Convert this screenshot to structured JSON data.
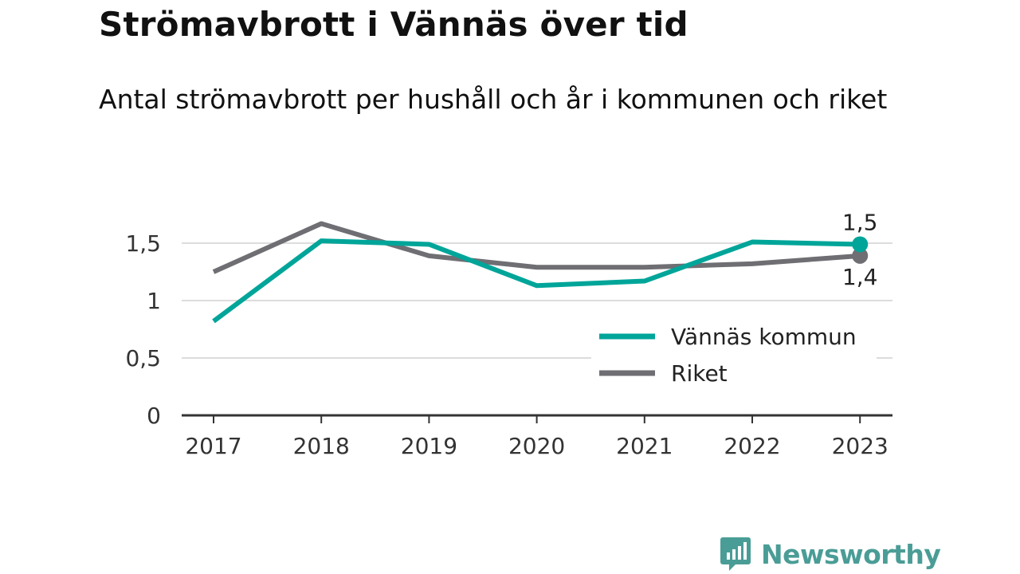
{
  "header": {
    "title": "Strömavbrott i Vännäs över tid",
    "subtitle": "Antal strömavbrott per hushåll och år i kommunen och riket"
  },
  "brand": {
    "name": "Newsworthy",
    "icon": "bar-chart-speech-bubble-icon",
    "color": "#4a9d96"
  },
  "chart_data": {
    "type": "line",
    "title": "Strömavbrott i Vännäs över tid",
    "subtitle": "Antal strömavbrott per hushåll och år i kommunen och riket",
    "xlabel": "",
    "ylabel": "",
    "categories": [
      "2017",
      "2018",
      "2019",
      "2020",
      "2021",
      "2022",
      "2023"
    ],
    "ylim": [
      0,
      1.7
    ],
    "yticks": [
      0,
      0.5,
      1,
      1.5
    ],
    "ytick_labels": [
      "0",
      "0,5",
      "1",
      "1,5"
    ],
    "grid": true,
    "legend_position": "bottom-right",
    "series": [
      {
        "name": "Vännäs kommun",
        "color": "#00a599",
        "values": [
          0.82,
          1.52,
          1.49,
          1.13,
          1.17,
          1.51,
          1.49
        ],
        "end_label": "1,5"
      },
      {
        "name": "Riket",
        "color": "#6e6e73",
        "values": [
          1.25,
          1.67,
          1.39,
          1.29,
          1.29,
          1.32,
          1.39
        ],
        "end_label": "1,4"
      }
    ]
  }
}
